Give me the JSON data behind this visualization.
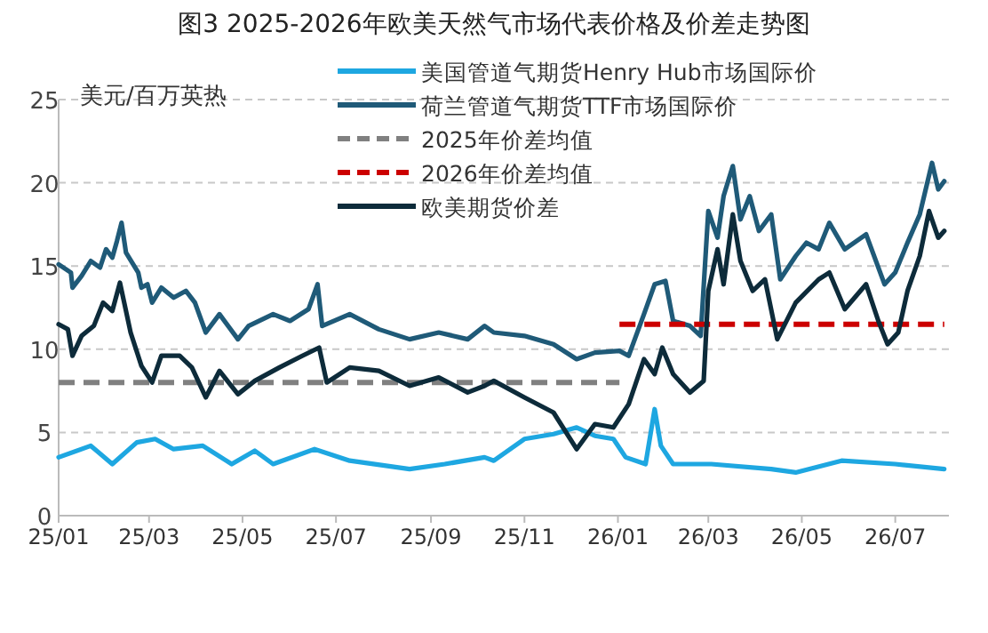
{
  "chart_data": {
    "type": "line",
    "title": "图3 2025-2026年欧美天然气市场代表价格及价差走势图",
    "ylabel": "美元/百万英热",
    "xlim": [
      "2025-01-01",
      "2026-08-05"
    ],
    "xticks": [
      {
        "value": "2025-01-01",
        "label": "25/01"
      },
      {
        "value": "2025-03-01",
        "label": "25/03"
      },
      {
        "value": "2025-05-01",
        "label": "25/05"
      },
      {
        "value": "2025-07-01",
        "label": "25/07"
      },
      {
        "value": "2025-09-01",
        "label": "25/09"
      },
      {
        "value": "2025-11-01",
        "label": "25/11"
      },
      {
        "value": "2026-01-01",
        "label": "26/01"
      },
      {
        "value": "2026-03-01",
        "label": "26/03"
      },
      {
        "value": "2026-05-01",
        "label": "26/05"
      },
      {
        "value": "2026-07-01",
        "label": "26/07"
      }
    ],
    "ylim": [
      0,
      25
    ],
    "yticks": [
      0,
      5,
      10,
      15,
      20,
      25
    ],
    "grid": "y",
    "legend": "top",
    "marker": "none",
    "series": [
      {
        "name": "美国管道气期货Henry Hub市场国际价",
        "color": "#1ea7e1",
        "line_style": "solid",
        "x": [
          "2025-01-01",
          "2025-01-22",
          "2025-02-05",
          "2025-02-21",
          "2025-03-05",
          "2025-03-17",
          "2025-04-05",
          "2025-04-24",
          "2025-05-09",
          "2025-05-21",
          "2025-06-17",
          "2025-07-10",
          "2025-08-18",
          "2025-09-10",
          "2025-10-06",
          "2025-10-12",
          "2025-11-01",
          "2025-11-20",
          "2025-12-05",
          "2025-12-17",
          "2025-12-29",
          "2026-01-06",
          "2026-01-19",
          "2026-01-25",
          "2026-01-29",
          "2026-02-06",
          "2026-03-03",
          "2026-04-11",
          "2026-04-27",
          "2026-05-27",
          "2026-07-01",
          "2026-08-02"
        ],
        "values": [
          3.5,
          4.2,
          3.1,
          4.4,
          4.6,
          4.0,
          4.2,
          3.1,
          3.9,
          3.1,
          4.0,
          3.3,
          2.8,
          3.1,
          3.5,
          3.3,
          4.6,
          4.9,
          5.3,
          4.8,
          4.6,
          3.5,
          3.1,
          6.4,
          4.2,
          3.1,
          3.1,
          2.8,
          2.6,
          3.3,
          3.1,
          2.8
        ]
      },
      {
        "name": "荷兰管道气期货TTF市场国际价",
        "color": "#1f5a78",
        "line_style": "solid",
        "x": [
          "2025-01-01",
          "2025-01-09",
          "2025-01-10",
          "2025-01-16",
          "2025-01-22",
          "2025-01-28",
          "2025-02-01",
          "2025-02-05",
          "2025-02-08",
          "2025-02-11",
          "2025-02-14",
          "2025-02-22",
          "2025-02-24",
          "2025-02-28",
          "2025-03-03",
          "2025-03-09",
          "2025-03-17",
          "2025-03-25",
          "2025-03-31",
          "2025-04-07",
          "2025-04-16",
          "2025-04-28",
          "2025-05-05",
          "2025-05-21",
          "2025-06-01",
          "2025-06-13",
          "2025-06-19",
          "2025-06-22",
          "2025-07-10",
          "2025-07-29",
          "2025-08-18",
          "2025-09-06",
          "2025-09-25",
          "2025-10-06",
          "2025-10-12",
          "2025-11-01",
          "2025-11-20",
          "2025-12-05",
          "2025-12-17",
          "2026-01-02",
          "2026-01-08",
          "2026-01-18",
          "2026-01-25",
          "2026-02-01",
          "2026-02-06",
          "2026-02-17",
          "2026-02-24",
          "2026-03-01",
          "2026-03-07",
          "2026-03-11",
          "2026-03-17",
          "2026-03-22",
          "2026-03-28",
          "2026-04-03",
          "2026-04-11",
          "2026-04-17",
          "2026-04-27",
          "2026-05-04",
          "2026-05-12",
          "2026-05-19",
          "2026-05-29",
          "2026-06-12",
          "2026-06-24",
          "2026-07-01",
          "2026-07-09",
          "2026-07-17",
          "2026-07-25",
          "2026-07-29",
          "2026-08-02"
        ],
        "values": [
          15.1,
          14.6,
          13.7,
          14.4,
          15.3,
          14.9,
          16.0,
          15.5,
          16.5,
          17.6,
          15.8,
          14.6,
          13.7,
          13.9,
          12.8,
          13.7,
          13.1,
          13.5,
          12.8,
          11.0,
          12.1,
          10.6,
          11.4,
          12.1,
          11.7,
          12.4,
          13.9,
          11.4,
          12.1,
          11.2,
          10.6,
          11.0,
          10.6,
          11.4,
          11.0,
          10.8,
          10.3,
          9.4,
          9.8,
          9.9,
          9.6,
          12.1,
          13.9,
          14.1,
          11.7,
          11.4,
          10.8,
          18.3,
          16.7,
          19.2,
          21.0,
          17.8,
          19.2,
          17.1,
          18.1,
          14.2,
          15.6,
          16.4,
          16.0,
          17.6,
          16.0,
          16.9,
          13.9,
          14.6,
          16.4,
          18.1,
          21.2,
          19.6,
          20.1
        ]
      },
      {
        "name": "2025年价差均值",
        "color": "#808080",
        "line_style": "dashed",
        "x": [
          "2025-01-01",
          "2026-01-02"
        ],
        "values": [
          8.0,
          8.0
        ]
      },
      {
        "name": "2026年价差均值",
        "color": "#cc0000",
        "line_style": "dashed",
        "x": [
          "2026-01-02",
          "2026-08-02"
        ],
        "values": [
          11.5,
          11.5
        ]
      },
      {
        "name": "欧美期货价差",
        "color": "#0d2b3a",
        "line_style": "solid",
        "x": [
          "2025-01-01",
          "2025-01-07",
          "2025-01-10",
          "2025-01-16",
          "2025-01-24",
          "2025-01-30",
          "2025-02-05",
          "2025-02-10",
          "2025-02-17",
          "2025-02-24",
          "2025-03-03",
          "2025-03-09",
          "2025-03-21",
          "2025-03-29",
          "2025-04-07",
          "2025-04-16",
          "2025-04-28",
          "2025-05-09",
          "2025-05-25",
          "2025-06-09",
          "2025-06-20",
          "2025-06-25",
          "2025-07-10",
          "2025-07-29",
          "2025-08-18",
          "2025-09-06",
          "2025-09-25",
          "2025-10-06",
          "2025-10-12",
          "2025-11-01",
          "2025-11-20",
          "2025-12-05",
          "2025-12-17",
          "2025-12-29",
          "2026-01-08",
          "2026-01-18",
          "2026-01-25",
          "2026-01-30",
          "2026-02-06",
          "2026-02-17",
          "2026-02-26",
          "2026-03-01",
          "2026-03-07",
          "2026-03-11",
          "2026-03-17",
          "2026-03-22",
          "2026-03-30",
          "2026-04-07",
          "2026-04-15",
          "2026-04-27",
          "2026-05-12",
          "2026-05-19",
          "2026-05-29",
          "2026-06-12",
          "2026-06-20",
          "2026-06-26",
          "2026-07-03",
          "2026-07-09",
          "2026-07-17",
          "2026-07-23",
          "2026-07-29",
          "2026-08-02"
        ],
        "values": [
          11.5,
          11.2,
          9.6,
          10.8,
          11.4,
          12.8,
          12.3,
          14.0,
          11.0,
          9.0,
          8.0,
          9.6,
          9.6,
          8.9,
          7.1,
          8.7,
          7.3,
          8.1,
          8.9,
          9.6,
          10.1,
          8.0,
          8.9,
          8.7,
          7.8,
          8.3,
          7.4,
          7.8,
          8.1,
          7.1,
          6.2,
          4.0,
          5.5,
          5.3,
          6.7,
          9.4,
          8.5,
          10.1,
          8.5,
          7.4,
          8.1,
          13.5,
          16.0,
          13.9,
          18.1,
          15.3,
          13.5,
          14.2,
          10.6,
          12.8,
          14.2,
          14.6,
          12.4,
          13.9,
          11.7,
          10.3,
          11.0,
          13.5,
          15.6,
          18.3,
          16.7,
          17.1
        ]
      }
    ]
  }
}
